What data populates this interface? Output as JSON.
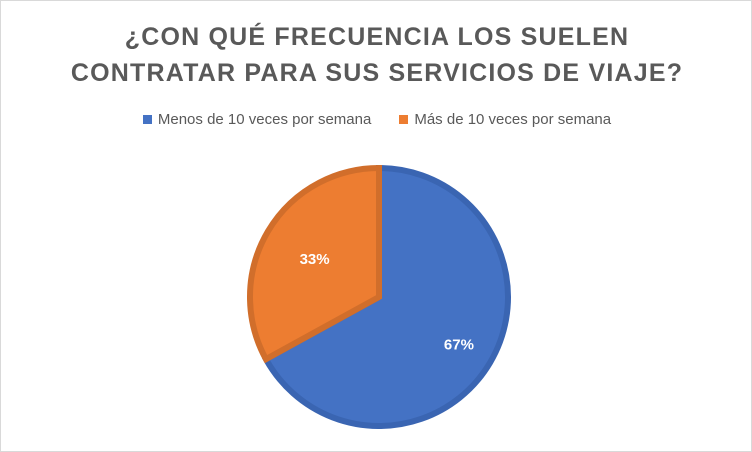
{
  "chart_data": {
    "type": "pie",
    "title_lines": [
      "¿CON QUÉ FRECUENCIA LOS SUELEN",
      "CONTRATAR PARA SUS SERVICIOS DE VIAJE?"
    ],
    "categories": [
      "Menos de 10 veces por semana",
      "Más de 10 veces por semana"
    ],
    "values": [
      67,
      33
    ],
    "labels": [
      "67%",
      "33%"
    ],
    "colors": [
      "#4472C4",
      "#ED7D31"
    ],
    "edge_colors": [
      "#3A65B2",
      "#D16E2B"
    ],
    "legend_position": "top"
  }
}
